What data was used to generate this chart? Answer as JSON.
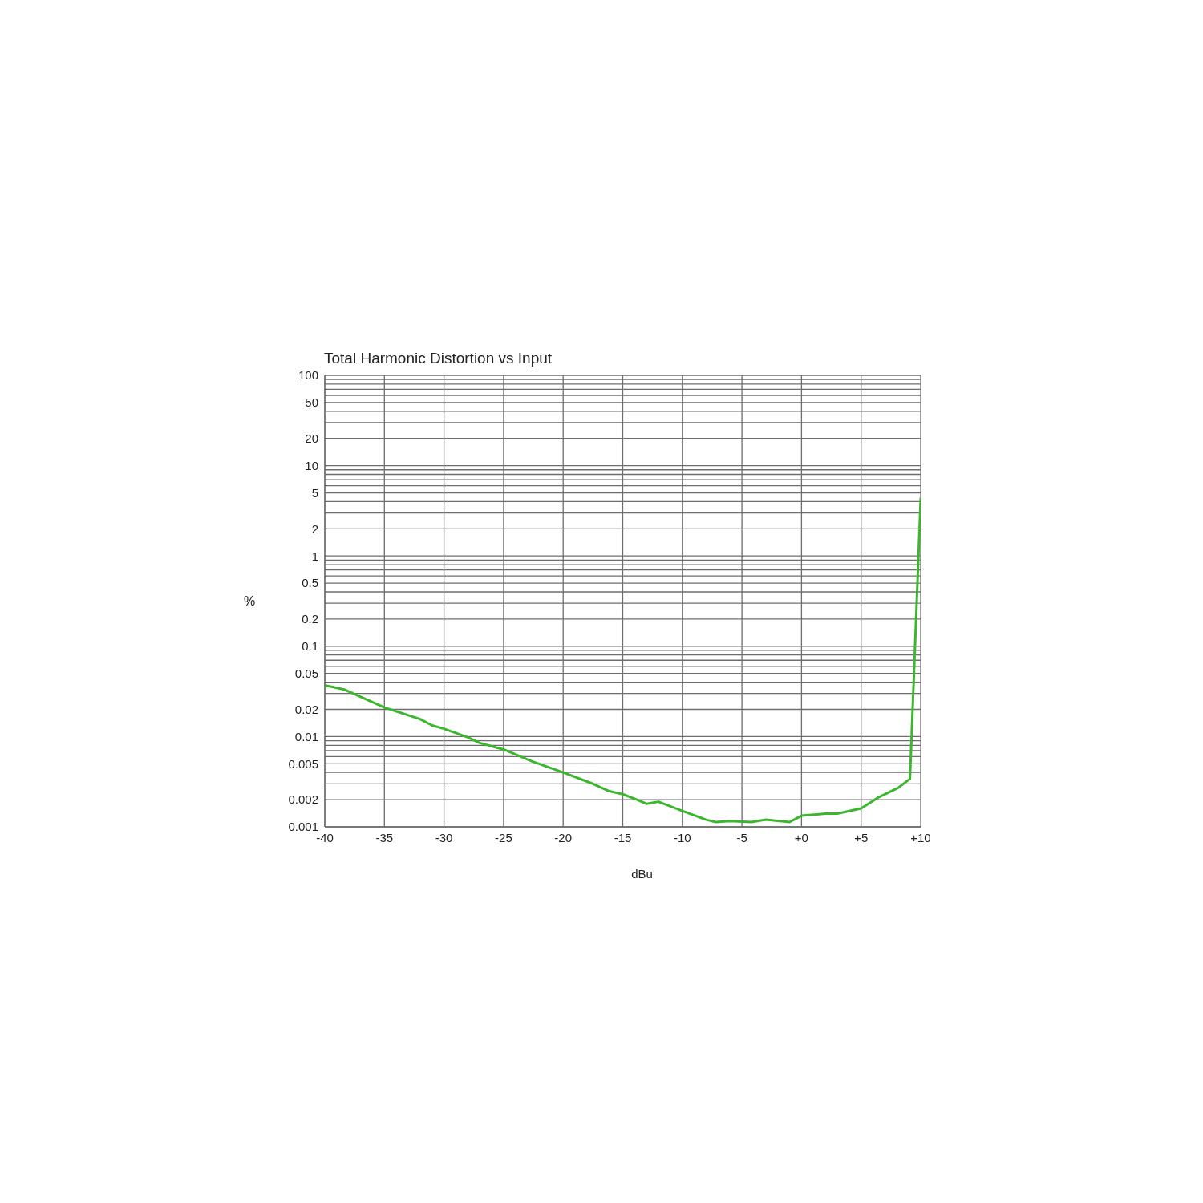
{
  "chart_data": {
    "type": "line",
    "title": "Total Harmonic Distortion vs Input",
    "xlabel": "dBu",
    "ylabel": "%",
    "log": "y",
    "grid": true,
    "xlim": [
      -40,
      10
    ],
    "xticks": [
      -40,
      -35,
      -30,
      -25,
      -20,
      -15,
      -10,
      -5,
      {
        "value": 0,
        "label": "+0"
      },
      {
        "value": 5,
        "label": "+5"
      },
      {
        "value": 10,
        "label": "+10"
      }
    ],
    "ylim": [
      0.001,
      100
    ],
    "yticks": [
      0.001,
      0.002,
      {
        "value": 0.003,
        "label": null
      },
      {
        "value": 0.004,
        "label": null
      },
      0.005,
      {
        "value": 0.006,
        "label": null
      },
      {
        "value": 0.007,
        "label": null
      },
      {
        "value": 0.008,
        "label": null
      },
      {
        "value": 0.009,
        "label": null
      },
      0.01,
      0.02,
      {
        "value": 0.03,
        "label": null
      },
      {
        "value": 0.04,
        "label": null
      },
      0.05,
      {
        "value": 0.06,
        "label": null
      },
      {
        "value": 0.07,
        "label": null
      },
      {
        "value": 0.08,
        "label": null
      },
      {
        "value": 0.09,
        "label": null
      },
      0.1,
      0.2,
      {
        "value": 0.3,
        "label": null
      },
      {
        "value": 0.4,
        "label": null
      },
      0.5,
      {
        "value": 0.6,
        "label": null
      },
      {
        "value": 0.7,
        "label": null
      },
      {
        "value": 0.8,
        "label": null
      },
      {
        "value": 0.9,
        "label": null
      },
      1,
      2,
      {
        "value": 3,
        "label": null
      },
      {
        "value": 4,
        "label": null
      },
      5,
      {
        "value": 6,
        "label": null
      },
      {
        "value": 7,
        "label": null
      },
      {
        "value": 8,
        "label": null
      },
      {
        "value": 9,
        "label": null
      },
      10,
      20,
      {
        "value": 30,
        "label": null
      },
      {
        "value": 40,
        "label": null
      },
      50,
      {
        "value": 60,
        "label": null
      },
      {
        "value": 70,
        "label": null
      },
      {
        "value": 80,
        "label": null
      },
      {
        "value": 90,
        "label": null
      },
      100
    ],
    "x": [
      -40,
      -38.3,
      -35,
      -32,
      -31,
      -30,
      -28,
      -27,
      -25,
      -22.6,
      -20,
      -17.5,
      -16.2,
      -15,
      -13.8,
      -13,
      -12,
      -10,
      -8,
      -7.2,
      -6,
      -4.2,
      -3,
      -1,
      0,
      2,
      3,
      5,
      6.4,
      8.1,
      9.1,
      10
    ],
    "series": [
      {
        "color": "#3cb62e",
        "values": [
          0.037,
          0.033,
          0.021,
          0.0156,
          0.0133,
          0.0122,
          0.0098,
          0.0085,
          0.0072,
          0.0053,
          0.004,
          0.003,
          0.0025,
          0.0023,
          0.002,
          0.0018,
          0.0019,
          0.0015,
          0.0012,
          0.00113,
          0.00116,
          0.00113,
          0.0012,
          0.00113,
          0.00133,
          0.0014,
          0.0014,
          0.0016,
          0.0021,
          0.0027,
          0.0034,
          4.4
        ]
      }
    ]
  }
}
